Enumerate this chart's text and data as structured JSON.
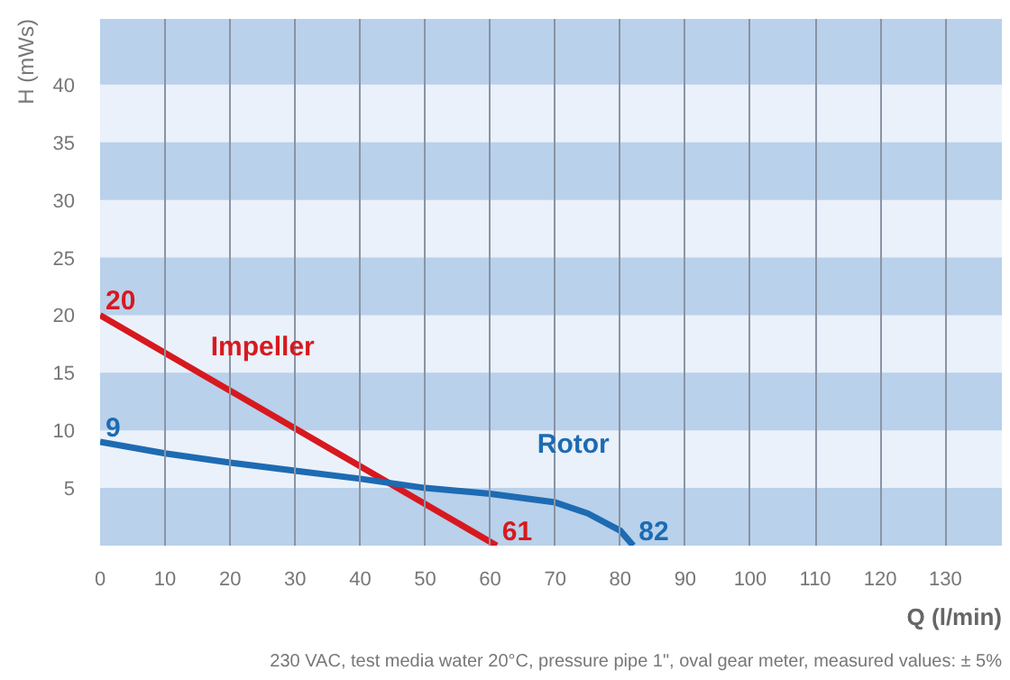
{
  "chart_data": {
    "type": "line",
    "xlabel": "Q (l/min)",
    "ylabel": "H (mWs)",
    "xlim": [
      0,
      138.7
    ],
    "ylim": [
      0,
      45.7
    ],
    "xticks": [
      0,
      10,
      20,
      30,
      40,
      50,
      60,
      70,
      80,
      90,
      100,
      110,
      120,
      130
    ],
    "yticks": [
      5,
      10,
      15,
      20,
      25,
      30,
      35,
      40
    ],
    "grid": "x",
    "marker": "none",
    "line_style": "solid",
    "series": [
      {
        "name": "Impeller",
        "color": "#d7191f",
        "x": [
          0,
          61
        ],
        "values": [
          20,
          0
        ]
      },
      {
        "name": "Rotor",
        "color": "#1d6bb3",
        "x": [
          0,
          10,
          20,
          30,
          40,
          50,
          60,
          70,
          75,
          80,
          82
        ],
        "values": [
          9,
          8.0,
          7.2,
          6.5,
          5.8,
          5.0,
          4.5,
          3.75,
          2.8,
          1.3,
          0
        ]
      }
    ],
    "bands": [
      {
        "axis": "y",
        "from": 0,
        "to": 5,
        "color": "#b9d1eb"
      },
      {
        "axis": "y",
        "from": 10,
        "to": 15,
        "color": "#b9d1eb"
      },
      {
        "axis": "y",
        "from": 20,
        "to": 25,
        "color": "#b9d1eb"
      },
      {
        "axis": "y",
        "from": 30,
        "to": 35,
        "color": "#b9d1eb"
      },
      {
        "axis": "y",
        "from": 40,
        "to": 45.7,
        "color": "#b9d1eb"
      }
    ],
    "annotations": [
      {
        "text": "20",
        "x": 0,
        "y": 20
      },
      {
        "text": "9",
        "x": 0,
        "y": 9
      },
      {
        "text": "61",
        "x": 61,
        "y": 0
      },
      {
        "text": "82",
        "x": 82,
        "y": 0
      },
      "230 VAC, test media water 20°C, pressure pipe 1\", oval gear meter, measured values: ± 5%"
    ]
  }
}
